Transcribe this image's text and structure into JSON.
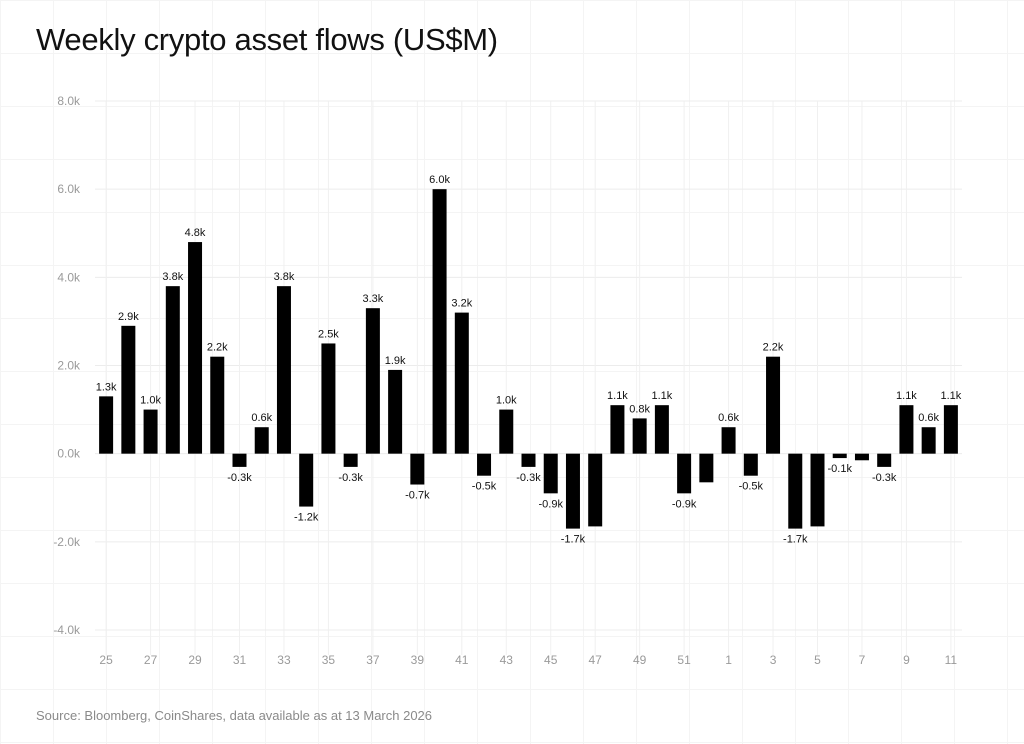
{
  "chart_data": {
    "type": "bar",
    "title": "Weekly crypto asset flows (US$M)",
    "xlabel": "",
    "ylabel": "",
    "ylim": [
      -4000,
      8000
    ],
    "yticks": [
      -4000,
      -2000,
      0,
      2000,
      4000,
      6000,
      8000
    ],
    "ytick_labels": [
      "-4.0k",
      "-2.0k",
      "0.0k",
      "2.0k",
      "4.0k",
      "6.0k",
      "8.0k"
    ],
    "grid": true,
    "bar_color": "#000000",
    "categories": [
      "25",
      "26",
      "27",
      "28",
      "29",
      "30",
      "31",
      "32",
      "33",
      "34",
      "35",
      "36",
      "37",
      "38",
      "39",
      "40",
      "41",
      "42",
      "43",
      "44",
      "45",
      "46",
      "47",
      "48",
      "49",
      "50",
      "51",
      "52",
      "1",
      "2",
      "3",
      "4",
      "5",
      "6",
      "7",
      "8",
      "9",
      "10",
      "11"
    ],
    "xtick_labels": [
      "25",
      "27",
      "29",
      "31",
      "33",
      "35",
      "37",
      "39",
      "41",
      "43",
      "45",
      "47",
      "49",
      "51",
      "1",
      "3",
      "5",
      "7",
      "9",
      "11"
    ],
    "values": [
      1300,
      2900,
      1000,
      3800,
      4800,
      2200,
      -300,
      600,
      3800,
      -1200,
      2500,
      -300,
      3300,
      1900,
      -700,
      6000,
      3200,
      -500,
      1000,
      -300,
      -900,
      -1700,
      -1650,
      1100,
      800,
      1100,
      -900,
      -650,
      600,
      -500,
      2200,
      -1700,
      -1650,
      -100,
      -150,
      -300,
      1100,
      600,
      1100
    ],
    "data_labels": [
      "1.3k",
      "2.9k",
      "1.0k",
      "3.8k",
      "4.8k",
      "2.2k",
      "-0.3k",
      "0.6k",
      "3.8k",
      "-1.2k",
      "2.5k",
      "-0.3k",
      "3.3k",
      "1.9k",
      "-0.7k",
      "6.0k",
      "3.2k",
      "-0.5k",
      "1.0k",
      "-0.3k",
      "-0.9k",
      "-1.7k",
      null,
      "1.1k",
      "0.8k",
      "1.1k",
      "-0.9k",
      null,
      "0.6k",
      "-0.5k",
      "2.2k",
      "-1.7k",
      null,
      "-0.1k",
      null,
      "-0.3k",
      "1.1k",
      "0.6k",
      "1.1k"
    ]
  },
  "source": "Source: Bloomberg, CoinShares, data available as at 13 March 2026"
}
